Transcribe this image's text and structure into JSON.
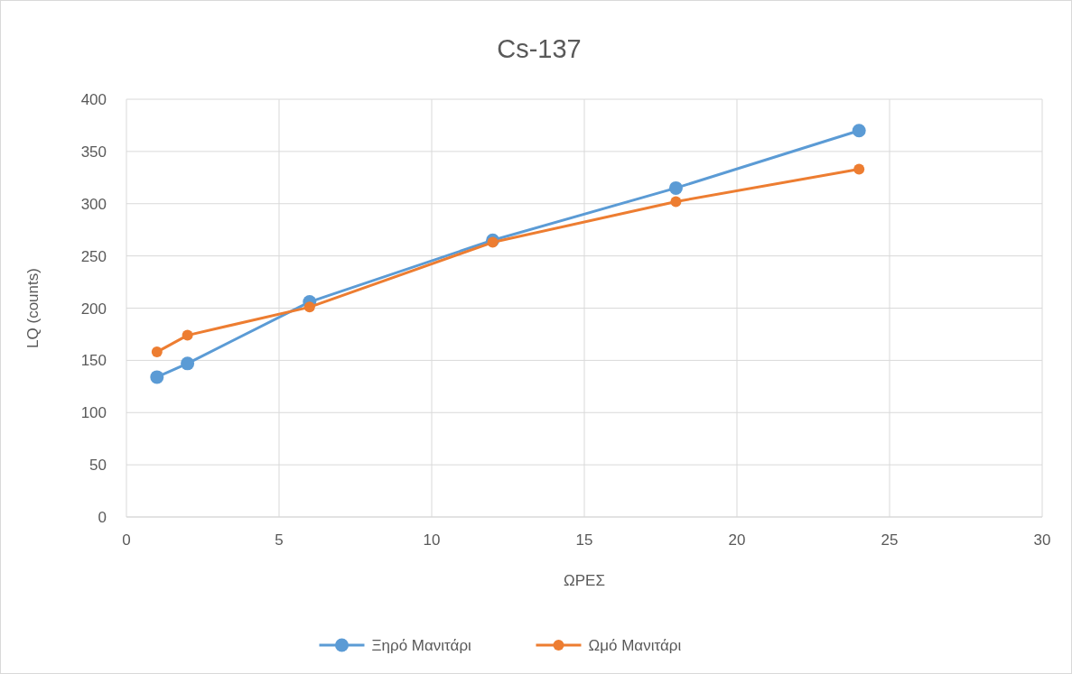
{
  "chart_data": {
    "type": "line",
    "title": "Cs-137",
    "xlabel": "ΩΡΕΣ",
    "ylabel": "LQ (counts)",
    "series": [
      {
        "name": "Ξηρό Μανιτάρι",
        "color": "#5b9bd5",
        "x": [
          1,
          2,
          6,
          12,
          18,
          24
        ],
        "values": [
          134,
          147,
          206,
          265,
          315,
          370
        ]
      },
      {
        "name": "Ωμό Μανιτάρι",
        "color": "#ed7d31",
        "x": [
          1,
          2,
          6,
          12,
          18,
          24
        ],
        "values": [
          158,
          174,
          201,
          263,
          302,
          333
        ]
      }
    ],
    "xlim": [
      0,
      30
    ],
    "xticks": [
      0,
      5,
      10,
      15,
      20,
      25,
      30
    ],
    "ylim": [
      0,
      400
    ],
    "yticks": [
      0,
      50,
      100,
      150,
      200,
      250,
      300,
      350,
      400
    ],
    "grid": true,
    "legend": "bottom",
    "marker": "circle",
    "line_style": "solid"
  }
}
